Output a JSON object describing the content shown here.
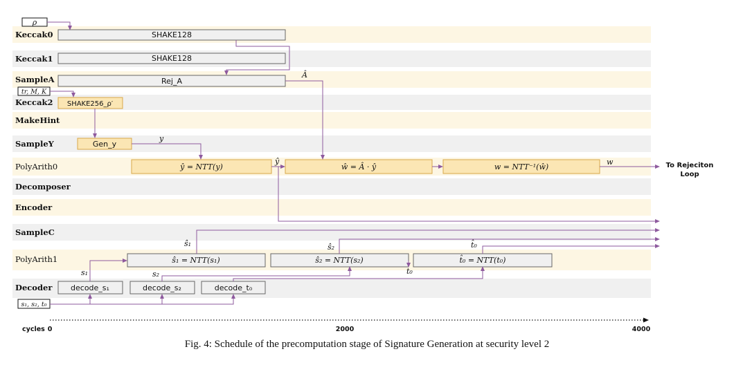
{
  "lanes": [
    "Keccak0",
    "Keccak1",
    "SampleA",
    "Keccak2",
    "MakeHint",
    "SampleY",
    "PolyArith0",
    "Decomposer",
    "Encoder",
    "SampleC",
    "PolyArith1",
    "Decoder"
  ],
  "inputs": {
    "rho": "ρ",
    "keccak2": "tr, M, K",
    "decoder": "s₁, s₂, t₀"
  },
  "boxes": {
    "shake128_0": "SHAKE128",
    "shake128_1": "SHAKE128",
    "rej": "Rej_A",
    "shake256": "SHAKE256_ρ′",
    "gen_y": "Gen_y",
    "ntt_y": "ŷ = NTT(y)",
    "w_hat": "ŵ = Â · ŷ",
    "w": "w = NTT⁻¹(ŵ)",
    "ntt_s1": "ŝ₁ = NTT(s₁)",
    "ntt_s2": "ŝ₂ = NTT(s₂)",
    "ntt_t0": "t̂₀ = NTT(t₀)",
    "decode_s1": "decode_s₁",
    "decode_s2": "decode_s₂",
    "decode_t0": "decode_t₀"
  },
  "signals": {
    "A_hat": "Â",
    "y": "y",
    "y_hat": "ŷ",
    "w": "w",
    "s1_hat": "ŝ₁",
    "s2_hat": "ŝ₂",
    "t0_hat": "t̂₀",
    "s1": "s₁",
    "s2": "s₂",
    "t0": "t₀"
  },
  "output_note": [
    "To Rejeciton",
    "Loop"
  ],
  "axis": {
    "label": "cycles",
    "ticks": [
      "0",
      "2000",
      "4000"
    ]
  },
  "caption": "Fig. 4: Schedule of the precomputation stage of Signature Generation at security level 2",
  "colors": {
    "lane_odd": "#fdf6e3",
    "lane_even": "#f0f0f0",
    "box_active": "#fbe6b4",
    "box_active_border": "#d8a84a",
    "box_idle": "#f0f0f0",
    "box_idle_border": "#666666",
    "arrow": "#8e5a9e"
  }
}
